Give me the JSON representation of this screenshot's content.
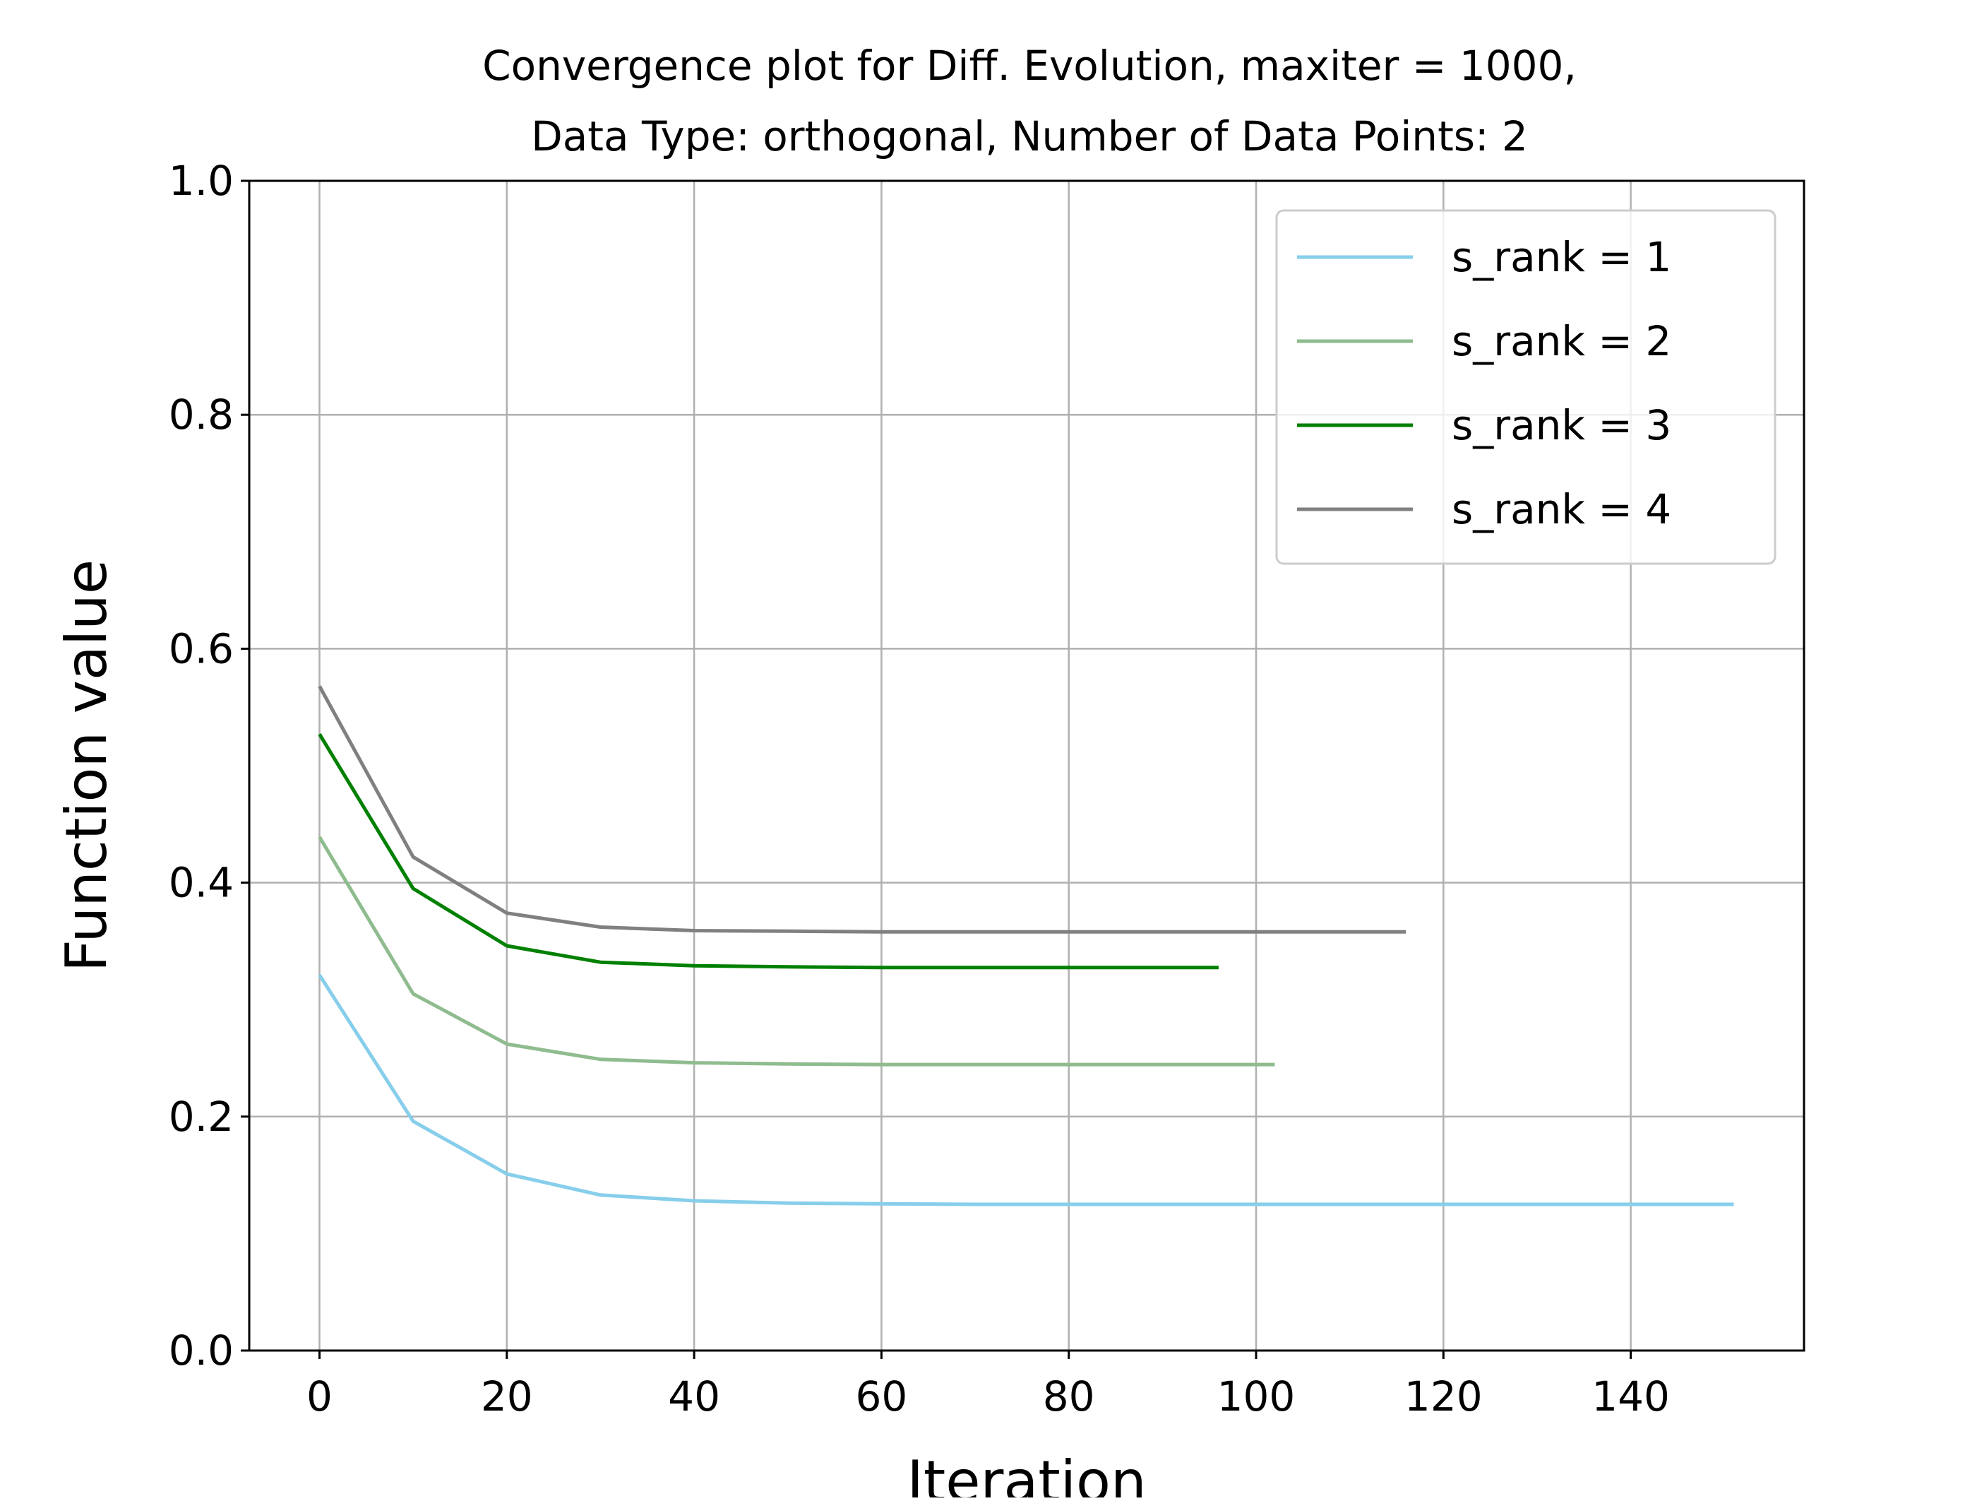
{
  "chart_data": {
    "type": "line",
    "title": "Convergence plot for Diff. Evolution, maxiter = 1000,",
    "subtitle": "Data Type: orthogonal, Number of Data Points: 2",
    "xlabel": "Iteration",
    "ylabel": "Function value",
    "xlim": [
      -7.5,
      158.5
    ],
    "ylim": [
      0.0,
      1.0
    ],
    "x_ticks": [
      0,
      20,
      40,
      60,
      80,
      100,
      120,
      140
    ],
    "y_ticks": [
      0.0,
      0.2,
      0.4,
      0.6,
      0.8,
      1.0
    ],
    "x_tick_labels": [
      "0",
      "20",
      "40",
      "60",
      "80",
      "100",
      "120",
      "140"
    ],
    "y_tick_labels": [
      "0.0",
      "0.2",
      "0.4",
      "0.6",
      "0.8",
      "1.0"
    ],
    "grid": true,
    "legend_position": "top-right",
    "series": [
      {
        "name": "s_rank = 1",
        "color": "#87ceeb",
        "x": [
          0,
          10,
          20,
          30,
          40,
          50,
          60,
          70,
          80,
          90,
          100,
          110,
          120,
          130,
          140,
          151
        ],
        "y": [
          0.321,
          0.196,
          0.151,
          0.133,
          0.128,
          0.126,
          0.1255,
          0.125,
          0.125,
          0.125,
          0.125,
          0.125,
          0.125,
          0.125,
          0.125,
          0.125
        ]
      },
      {
        "name": "s_rank = 2",
        "color": "#8fbc8f",
        "x": [
          0,
          10,
          20,
          30,
          40,
          50,
          60,
          70,
          80,
          90,
          102
        ],
        "y": [
          0.439,
          0.305,
          0.262,
          0.249,
          0.246,
          0.245,
          0.2445,
          0.2445,
          0.2445,
          0.2445,
          0.2445
        ]
      },
      {
        "name": "s_rank = 3",
        "color": "#008000",
        "x": [
          0,
          10,
          20,
          30,
          40,
          50,
          60,
          70,
          80,
          96
        ],
        "y": [
          0.527,
          0.395,
          0.346,
          0.332,
          0.329,
          0.328,
          0.3275,
          0.3275,
          0.3275,
          0.3275
        ]
      },
      {
        "name": "s_rank = 4",
        "color": "#808080",
        "x": [
          0,
          10,
          20,
          30,
          40,
          50,
          60,
          70,
          80,
          90,
          100,
          116
        ],
        "y": [
          0.568,
          0.422,
          0.374,
          0.362,
          0.359,
          0.3585,
          0.358,
          0.358,
          0.358,
          0.358,
          0.358,
          0.358
        ]
      }
    ]
  }
}
